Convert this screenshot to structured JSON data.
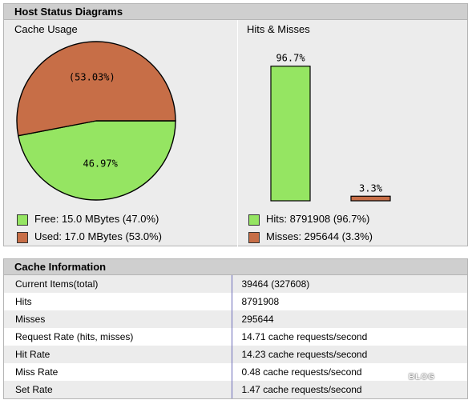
{
  "status_panel": {
    "title": "Host Status Diagrams",
    "cache_usage_title": "Cache Usage",
    "hits_misses_title": "Hits & Misses"
  },
  "colors": {
    "free": "#95e562",
    "used": "#c76e47",
    "line": "#000000"
  },
  "chart_data": [
    {
      "type": "pie",
      "title": "Cache Usage",
      "labels": [
        "Free",
        "Used"
      ],
      "values": [
        46.97,
        53.03
      ],
      "slice_labels": [
        "46.97%",
        "(53.03%)"
      ]
    },
    {
      "type": "bar",
      "title": "Hits & Misses",
      "categories": [
        "Hits",
        "Misses"
      ],
      "values": [
        96.7,
        3.3
      ],
      "value_labels": [
        "96.7%",
        "3.3%"
      ],
      "ylim": [
        0,
        100
      ]
    }
  ],
  "legend": {
    "free": "Free: 15.0 MBytes (47.0%)",
    "used": "Used: 17.0 MBytes (53.0%)",
    "hits": "Hits: 8791908 (96.7%)",
    "misses": "Misses: 295644 (3.3%)"
  },
  "info_panel": {
    "title": "Cache Information",
    "rows": [
      {
        "label": "Current Items(total)",
        "value": "39464 (327608)"
      },
      {
        "label": "Hits",
        "value": "8791908"
      },
      {
        "label": "Misses",
        "value": "295644"
      },
      {
        "label": "Request Rate (hits, misses)",
        "value": "14.71 cache requests/second"
      },
      {
        "label": "Hit Rate",
        "value": "14.23 cache requests/second"
      },
      {
        "label": "Miss Rate",
        "value": "0.48 cache requests/second"
      },
      {
        "label": "Set Rate",
        "value": "1.47 cache requests/second"
      }
    ]
  },
  "watermark": "BLOG"
}
